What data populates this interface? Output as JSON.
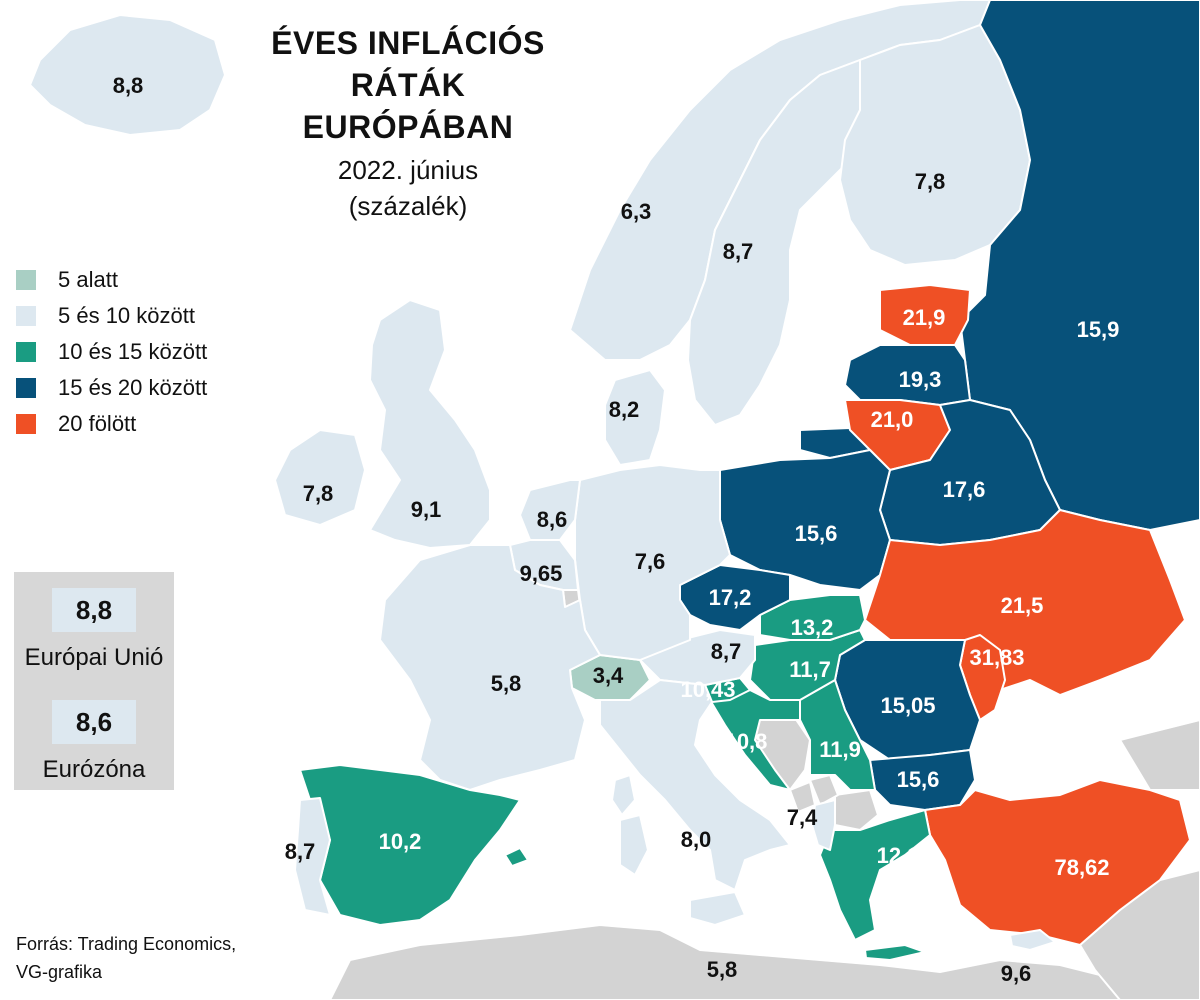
{
  "title": {
    "line1": "ÉVES INFLÁCIÓS",
    "line2": "RÁTÁK",
    "line3": "EURÓPÁBAN",
    "date": "2022. június",
    "unit": "(százalék)"
  },
  "legend": [
    {
      "label": "5 alatt",
      "color": "#a9cfc4"
    },
    {
      "label": "5 és 10 között",
      "color": "#dde8f0"
    },
    {
      "label": "10 és 15 között",
      "color": "#1a9c82"
    },
    {
      "label": "15 és 20 között",
      "color": "#07517a"
    },
    {
      "label": "20 fölött",
      "color": "#ef5025"
    }
  ],
  "averages": {
    "eu_value": "8,8",
    "eu_label": "Európai Unió",
    "ez_value": "8,6",
    "ez_label": "Eurózóna"
  },
  "source": {
    "line1": "Forrás: Trading Economics,",
    "line2": "VG-grafika"
  },
  "colors": {
    "nodata": "#d3d3d3",
    "sea": "#ffffff"
  },
  "countries": [
    {
      "id": "iceland",
      "value": "8,8",
      "band": 1
    },
    {
      "id": "norway",
      "value": "6,3",
      "band": 1
    },
    {
      "id": "sweden",
      "value": "8,7",
      "band": 1
    },
    {
      "id": "finland",
      "value": "7,8",
      "band": 1
    },
    {
      "id": "estonia",
      "value": "21,9",
      "band": 4
    },
    {
      "id": "latvia",
      "value": "19,3",
      "band": 3
    },
    {
      "id": "lithuania",
      "value": "21,0",
      "band": 4
    },
    {
      "id": "russia",
      "value": "15,9",
      "band": 3
    },
    {
      "id": "belarus",
      "value": "17,6",
      "band": 3
    },
    {
      "id": "poland",
      "value": "15,6",
      "band": 3
    },
    {
      "id": "ukraine",
      "value": "21,5",
      "band": 4
    },
    {
      "id": "moldova",
      "value": "31,83",
      "band": 4
    },
    {
      "id": "romania",
      "value": "15,05",
      "band": 3
    },
    {
      "id": "bulgaria",
      "value": "15,6",
      "band": 3
    },
    {
      "id": "turkey",
      "value": "78,62",
      "band": 4
    },
    {
      "id": "greece",
      "value": "12,1",
      "band": 2
    },
    {
      "id": "serbia",
      "value": "11,9",
      "band": 2
    },
    {
      "id": "hungary",
      "value": "11,7",
      "band": 2
    },
    {
      "id": "slovakia",
      "value": "13,2",
      "band": 2
    },
    {
      "id": "czechia",
      "value": "17,2",
      "band": 3
    },
    {
      "id": "croatia",
      "value": "10,8",
      "band": 2
    },
    {
      "id": "slovenia",
      "value": "10,43",
      "band": 2
    },
    {
      "id": "austria",
      "value": "8,7",
      "band": 1
    },
    {
      "id": "switzerland",
      "value": "3,4",
      "band": 0
    },
    {
      "id": "germany",
      "value": "7,6",
      "band": 1
    },
    {
      "id": "denmark",
      "value": "8,2",
      "band": 1
    },
    {
      "id": "netherlands",
      "value": "8,6",
      "band": 1
    },
    {
      "id": "belgium",
      "value": "9,65",
      "band": 1
    },
    {
      "id": "uk",
      "value": "9,1",
      "band": 1
    },
    {
      "id": "ireland",
      "value": "7,8",
      "band": 1
    },
    {
      "id": "france",
      "value": "5,8",
      "band": 1
    },
    {
      "id": "spain",
      "value": "10,2",
      "band": 2
    },
    {
      "id": "portugal",
      "value": "8,7",
      "band": 1
    },
    {
      "id": "italy",
      "value": "8,0",
      "band": 1
    },
    {
      "id": "albania",
      "value": "7,4",
      "band": 1
    },
    {
      "id": "north_africa",
      "value": "5,8",
      "band": 1
    },
    {
      "id": "cyprus",
      "value": "9,6",
      "band": 1
    }
  ]
}
